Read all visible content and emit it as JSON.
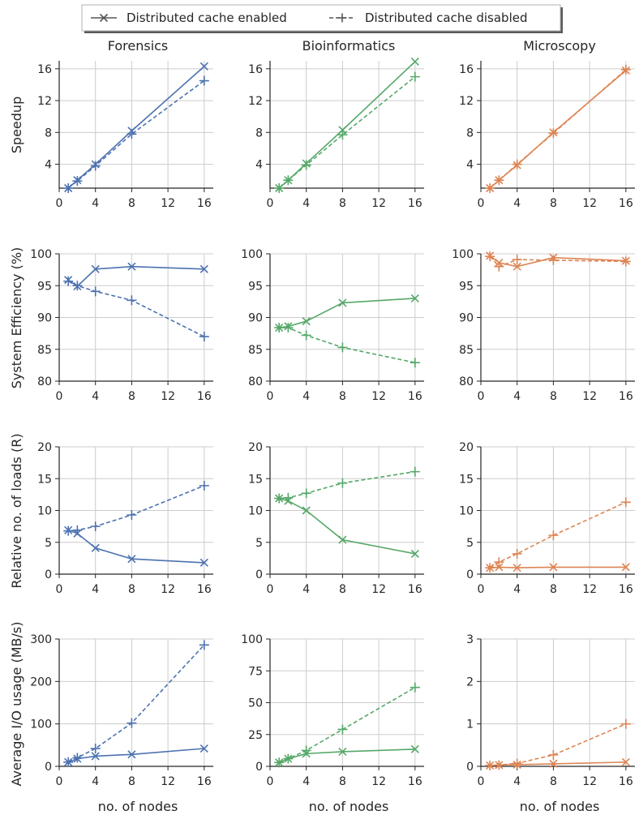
{
  "legend": {
    "enabled_label": "Distributed cache enabled",
    "disabled_label": "Distributed cache disabled"
  },
  "columns": [
    "Forensics",
    "Bioinformatics",
    "Microscopy"
  ],
  "row_ylabels": [
    "Speedup",
    "System Efficiency (%)",
    "Relative no. of loads (R)",
    "Average I/O usage (MB/s)"
  ],
  "xlabel": "no. of nodes",
  "colors": {
    "Forensics": "#4c72b0",
    "Bioinformatics": "#55a868",
    "Microscopy": "#dd8452"
  },
  "chart_data": [
    {
      "type": "line",
      "row": 0,
      "col": 0,
      "title": "Forensics",
      "ylabel": "Speedup",
      "xlabel": "",
      "x": [
        1,
        2,
        4,
        8,
        16
      ],
      "xlim": [
        0,
        17
      ],
      "ylim": [
        1,
        17
      ],
      "xticks": [
        0,
        4,
        8,
        12,
        16
      ],
      "yticks": [
        4,
        8,
        12,
        16
      ],
      "series": [
        {
          "name": "Distributed cache enabled",
          "values": [
            1.0,
            2.0,
            4.0,
            8.2,
            16.3
          ]
        },
        {
          "name": "Distributed cache disabled",
          "values": [
            1.0,
            1.9,
            3.8,
            7.8,
            14.5
          ]
        }
      ]
    },
    {
      "type": "line",
      "row": 0,
      "col": 1,
      "title": "Bioinformatics",
      "ylabel": "",
      "xlabel": "",
      "x": [
        1,
        2,
        4,
        8,
        16
      ],
      "xlim": [
        0,
        17
      ],
      "ylim": [
        1,
        17
      ],
      "xticks": [
        0,
        4,
        8,
        12,
        16
      ],
      "yticks": [
        4,
        8,
        12,
        16
      ],
      "series": [
        {
          "name": "Distributed cache enabled",
          "values": [
            1.0,
            2.0,
            4.1,
            8.3,
            16.9
          ]
        },
        {
          "name": "Distributed cache disabled",
          "values": [
            1.0,
            2.0,
            3.9,
            7.7,
            15.0
          ]
        }
      ]
    },
    {
      "type": "line",
      "row": 0,
      "col": 2,
      "title": "Microscopy",
      "ylabel": "",
      "xlabel": "",
      "x": [
        1,
        2,
        4,
        8,
        16
      ],
      "xlim": [
        0,
        17
      ],
      "ylim": [
        1,
        17
      ],
      "xticks": [
        0,
        4,
        8,
        12,
        16
      ],
      "yticks": [
        4,
        8,
        12,
        16
      ],
      "series": [
        {
          "name": "Distributed cache enabled",
          "values": [
            1.0,
            2.0,
            3.9,
            8.0,
            15.8
          ]
        },
        {
          "name": "Distributed cache disabled",
          "values": [
            1.0,
            2.0,
            4.0,
            7.9,
            15.9
          ]
        }
      ]
    },
    {
      "type": "line",
      "row": 1,
      "col": 0,
      "title": "",
      "ylabel": "System Efficiency (%)",
      "xlabel": "",
      "x": [
        1,
        2,
        4,
        8,
        16
      ],
      "xlim": [
        0,
        17
      ],
      "ylim": [
        80,
        100
      ],
      "xticks": [
        0,
        4,
        8,
        12,
        16
      ],
      "yticks": [
        80,
        85,
        90,
        95,
        100
      ],
      "series": [
        {
          "name": "Distributed cache enabled",
          "values": [
            95.9,
            94.9,
            97.6,
            98.0,
            97.6
          ]
        },
        {
          "name": "Distributed cache disabled",
          "values": [
            95.7,
            95.0,
            94.1,
            92.7,
            87.0
          ]
        }
      ]
    },
    {
      "type": "line",
      "row": 1,
      "col": 1,
      "title": "",
      "ylabel": "",
      "xlabel": "",
      "x": [
        1,
        2,
        4,
        8,
        16
      ],
      "xlim": [
        0,
        17
      ],
      "ylim": [
        80,
        100
      ],
      "xticks": [
        0,
        4,
        8,
        12,
        16
      ],
      "yticks": [
        80,
        85,
        90,
        95,
        100
      ],
      "series": [
        {
          "name": "Distributed cache enabled",
          "values": [
            88.4,
            88.6,
            89.4,
            92.3,
            93.0
          ]
        },
        {
          "name": "Distributed cache disabled",
          "values": [
            88.4,
            88.4,
            87.2,
            85.3,
            82.9
          ]
        }
      ]
    },
    {
      "type": "line",
      "row": 1,
      "col": 2,
      "title": "",
      "ylabel": "",
      "xlabel": "",
      "x": [
        1,
        2,
        4,
        8,
        16
      ],
      "xlim": [
        0,
        17
      ],
      "ylim": [
        80,
        100
      ],
      "xticks": [
        0,
        4,
        8,
        12,
        16
      ],
      "yticks": [
        80,
        85,
        90,
        95,
        100
      ],
      "series": [
        {
          "name": "Distributed cache enabled",
          "values": [
            99.7,
            98.6,
            98.0,
            99.4,
            98.9
          ]
        },
        {
          "name": "Distributed cache disabled",
          "values": [
            99.6,
            98.0,
            99.1,
            99.0,
            98.8
          ]
        }
      ]
    },
    {
      "type": "line",
      "row": 2,
      "col": 0,
      "title": "",
      "ylabel": "Relative no. of loads (R)",
      "xlabel": "",
      "x": [
        1,
        2,
        4,
        8,
        16
      ],
      "xlim": [
        0,
        17
      ],
      "ylim": [
        0,
        20
      ],
      "xticks": [
        0,
        4,
        8,
        12,
        16
      ],
      "yticks": [
        0,
        5,
        10,
        15,
        20
      ],
      "series": [
        {
          "name": "Distributed cache enabled",
          "values": [
            6.9,
            6.4,
            4.1,
            2.4,
            1.8
          ]
        },
        {
          "name": "Distributed cache disabled",
          "values": [
            6.8,
            6.9,
            7.5,
            9.3,
            13.9
          ]
        }
      ]
    },
    {
      "type": "line",
      "row": 2,
      "col": 1,
      "title": "",
      "ylabel": "",
      "xlabel": "",
      "x": [
        1,
        2,
        4,
        8,
        16
      ],
      "xlim": [
        0,
        17
      ],
      "ylim": [
        0,
        20
      ],
      "xticks": [
        0,
        4,
        8,
        12,
        16
      ],
      "yticks": [
        0,
        5,
        10,
        15,
        20
      ],
      "series": [
        {
          "name": "Distributed cache enabled",
          "values": [
            11.9,
            11.5,
            10.0,
            5.4,
            3.2
          ]
        },
        {
          "name": "Distributed cache disabled",
          "values": [
            11.9,
            12.0,
            12.7,
            14.3,
            16.1
          ]
        }
      ]
    },
    {
      "type": "line",
      "row": 2,
      "col": 2,
      "title": "",
      "ylabel": "",
      "xlabel": "",
      "x": [
        1,
        2,
        4,
        8,
        16
      ],
      "xlim": [
        0,
        17
      ],
      "ylim": [
        0,
        20
      ],
      "xticks": [
        0,
        4,
        8,
        12,
        16
      ],
      "yticks": [
        0,
        5,
        10,
        15,
        20
      ],
      "series": [
        {
          "name": "Distributed cache enabled",
          "values": [
            1.0,
            1.1,
            1.0,
            1.1,
            1.1
          ]
        },
        {
          "name": "Distributed cache disabled",
          "values": [
            1.0,
            1.9,
            3.2,
            6.1,
            11.3
          ]
        }
      ]
    },
    {
      "type": "line",
      "row": 3,
      "col": 0,
      "title": "",
      "ylabel": "Average I/O usage (MB/s)",
      "xlabel": "no. of nodes",
      "x": [
        1,
        2,
        4,
        8,
        16
      ],
      "xlim": [
        0,
        17
      ],
      "ylim": [
        0,
        300
      ],
      "xticks": [
        0,
        4,
        8,
        12,
        16
      ],
      "yticks": [
        0,
        100,
        200,
        300
      ],
      "series": [
        {
          "name": "Distributed cache enabled",
          "values": [
            10,
            18,
            24,
            28,
            42
          ]
        },
        {
          "name": "Distributed cache disabled",
          "values": [
            10,
            20,
            42,
            102,
            286
          ]
        }
      ]
    },
    {
      "type": "line",
      "row": 3,
      "col": 1,
      "title": "",
      "ylabel": "",
      "xlabel": "no. of nodes",
      "x": [
        1,
        2,
        4,
        8,
        16
      ],
      "xlim": [
        0,
        17
      ],
      "ylim": [
        0,
        100
      ],
      "xticks": [
        0,
        4,
        8,
        12,
        16
      ],
      "yticks": [
        0,
        25,
        50,
        75,
        100
      ],
      "series": [
        {
          "name": "Distributed cache enabled",
          "values": [
            3,
            6,
            10,
            11.5,
            13.5
          ]
        },
        {
          "name": "Distributed cache disabled",
          "values": [
            3,
            6,
            12.5,
            29,
            62
          ]
        }
      ]
    },
    {
      "type": "line",
      "row": 3,
      "col": 2,
      "title": "",
      "ylabel": "",
      "xlabel": "no. of nodes",
      "x": [
        1,
        2,
        4,
        8,
        16
      ],
      "xlim": [
        0,
        17
      ],
      "ylim": [
        0,
        3
      ],
      "xticks": [
        0,
        4,
        8,
        12,
        16
      ],
      "yticks": [
        0,
        1,
        2,
        3
      ],
      "series": [
        {
          "name": "Distributed cache enabled",
          "values": [
            0.02,
            0.03,
            0.04,
            0.06,
            0.1
          ]
        },
        {
          "name": "Distributed cache disabled",
          "values": [
            0.02,
            0.03,
            0.07,
            0.27,
            1.0
          ]
        }
      ]
    }
  ]
}
